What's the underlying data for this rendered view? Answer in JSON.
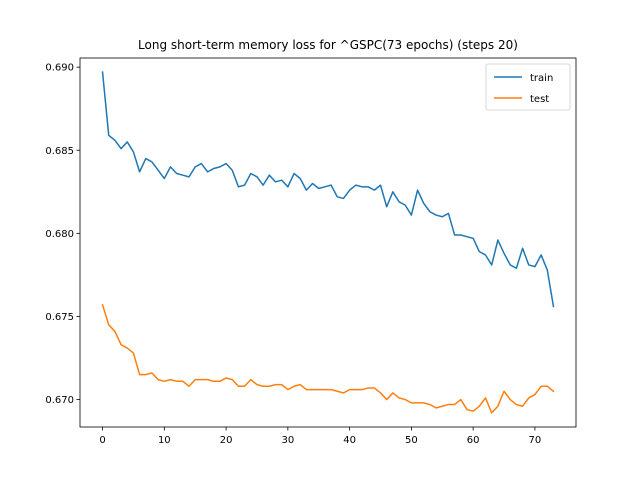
{
  "chart_data": {
    "type": "line",
    "title": "Long short-term memory loss for ^GSPC(73 epochs) (steps 20)",
    "xlabel": "",
    "ylabel": "",
    "xlim": [
      -3.65,
      76.65
    ],
    "ylim": [
      0.66835,
      0.69055
    ],
    "xticks": [
      0,
      10,
      20,
      30,
      40,
      50,
      60,
      70
    ],
    "xtick_labels": [
      "0",
      "10",
      "20",
      "30",
      "40",
      "50",
      "60",
      "70"
    ],
    "yticks": [
      0.67,
      0.675,
      0.68,
      0.685,
      0.69
    ],
    "ytick_labels": [
      "0.670",
      "0.675",
      "0.680",
      "0.685",
      "0.690"
    ],
    "grid": false,
    "legend": {
      "position": "top-right"
    },
    "series": [
      {
        "name": "train",
        "color": "#1f77b4",
        "x": [
          0,
          1,
          2,
          3,
          4,
          5,
          6,
          7,
          8,
          9,
          10,
          11,
          12,
          13,
          14,
          15,
          16,
          17,
          18,
          19,
          20,
          21,
          22,
          23,
          24,
          25,
          26,
          27,
          28,
          29,
          30,
          31,
          32,
          33,
          34,
          35,
          36,
          37,
          38,
          39,
          40,
          41,
          42,
          43,
          44,
          45,
          46,
          47,
          48,
          49,
          50,
          51,
          52,
          53,
          54,
          55,
          56,
          57,
          58,
          59,
          60,
          61,
          62,
          63,
          64,
          65,
          66,
          67,
          68,
          69,
          70,
          71,
          72,
          73
        ],
        "values": [
          0.6897,
          0.6859,
          0.6856,
          0.6851,
          0.6855,
          0.6849,
          0.6837,
          0.6845,
          0.6843,
          0.6838,
          0.6833,
          0.684,
          0.6836,
          0.6835,
          0.6834,
          0.684,
          0.6842,
          0.6837,
          0.6839,
          0.684,
          0.6842,
          0.6838,
          0.6828,
          0.6829,
          0.6836,
          0.6834,
          0.6829,
          0.6835,
          0.6831,
          0.6832,
          0.6828,
          0.6836,
          0.6833,
          0.6826,
          0.683,
          0.6827,
          0.6828,
          0.6829,
          0.6822,
          0.6821,
          0.6826,
          0.6829,
          0.6828,
          0.6828,
          0.6826,
          0.6829,
          0.6816,
          0.6825,
          0.6819,
          0.6817,
          0.6811,
          0.6826,
          0.6818,
          0.6813,
          0.6811,
          0.681,
          0.6812,
          0.6799,
          0.6799,
          0.6798,
          0.6797,
          0.6789,
          0.6787,
          0.6781,
          0.6796,
          0.6788,
          0.6781,
          0.6779,
          0.6791,
          0.6781,
          0.678,
          0.6787,
          0.6778,
          0.6756
        ]
      },
      {
        "name": "test",
        "color": "#ff7f0e",
        "x": [
          0,
          1,
          2,
          3,
          4,
          5,
          6,
          7,
          8,
          9,
          10,
          11,
          12,
          13,
          14,
          15,
          16,
          17,
          18,
          19,
          20,
          21,
          22,
          23,
          24,
          25,
          26,
          27,
          28,
          29,
          30,
          31,
          32,
          33,
          34,
          35,
          36,
          37,
          38,
          39,
          40,
          41,
          42,
          43,
          44,
          45,
          46,
          47,
          48,
          49,
          50,
          51,
          52,
          53,
          54,
          55,
          56,
          57,
          58,
          59,
          60,
          61,
          62,
          63,
          64,
          65,
          66,
          67,
          68,
          69,
          70,
          71,
          72,
          73
        ],
        "values": [
          0.6757,
          0.6745,
          0.6741,
          0.6733,
          0.6731,
          0.6728,
          0.6715,
          0.6715,
          0.6716,
          0.6712,
          0.6711,
          0.6712,
          0.6711,
          0.6711,
          0.6708,
          0.6712,
          0.6712,
          0.6712,
          0.6711,
          0.6711,
          0.6713,
          0.6712,
          0.6708,
          0.6708,
          0.6712,
          0.6709,
          0.6708,
          0.6708,
          0.6709,
          0.6709,
          0.6706,
          0.6708,
          0.6709,
          0.6706,
          0.6706,
          0.6706,
          0.6706,
          0.6706,
          0.6705,
          0.6704,
          0.6706,
          0.6706,
          0.6706,
          0.6707,
          0.6707,
          0.6704,
          0.67,
          0.6704,
          0.6701,
          0.67,
          0.6698,
          0.6698,
          0.6698,
          0.6697,
          0.6695,
          0.6696,
          0.6697,
          0.6697,
          0.67,
          0.6694,
          0.6693,
          0.6696,
          0.6701,
          0.6692,
          0.6696,
          0.6705,
          0.67,
          0.6697,
          0.6696,
          0.6701,
          0.6703,
          0.6708,
          0.6708,
          0.6705
        ]
      }
    ]
  }
}
